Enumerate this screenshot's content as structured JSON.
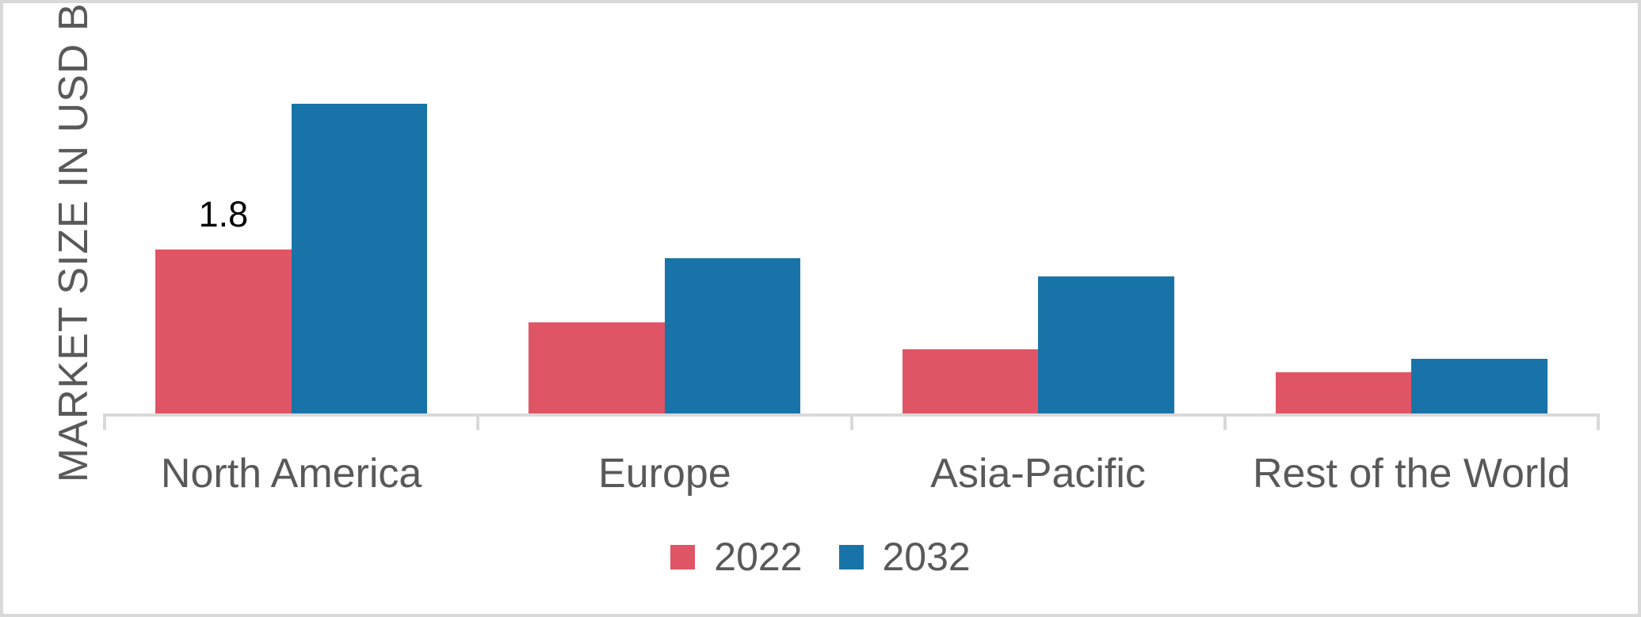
{
  "chart_data": {
    "type": "bar",
    "title": "",
    "categories": [
      "North America",
      "Europe",
      "Asia-Pacific",
      "Rest of the World"
    ],
    "series": [
      {
        "name": "2022",
        "color": "#E05566",
        "values": [
          1.8,
          1.0,
          0.7,
          0.45
        ]
      },
      {
        "name": "2032",
        "color": "#1874A8",
        "values": [
          3.4,
          1.7,
          1.5,
          0.6
        ]
      }
    ],
    "xlabel": "",
    "ylabel": "MARKET SIZE IN USD BN",
    "ylim": [
      0,
      3.9
    ],
    "grid": false,
    "legend_position": "bottom",
    "axis_color": "#D9D9D9",
    "text_color": "#595959",
    "data_label_color": "#000000",
    "data_labels": [
      {
        "series": "2022",
        "category": "North America",
        "text": "1.8"
      }
    ]
  }
}
